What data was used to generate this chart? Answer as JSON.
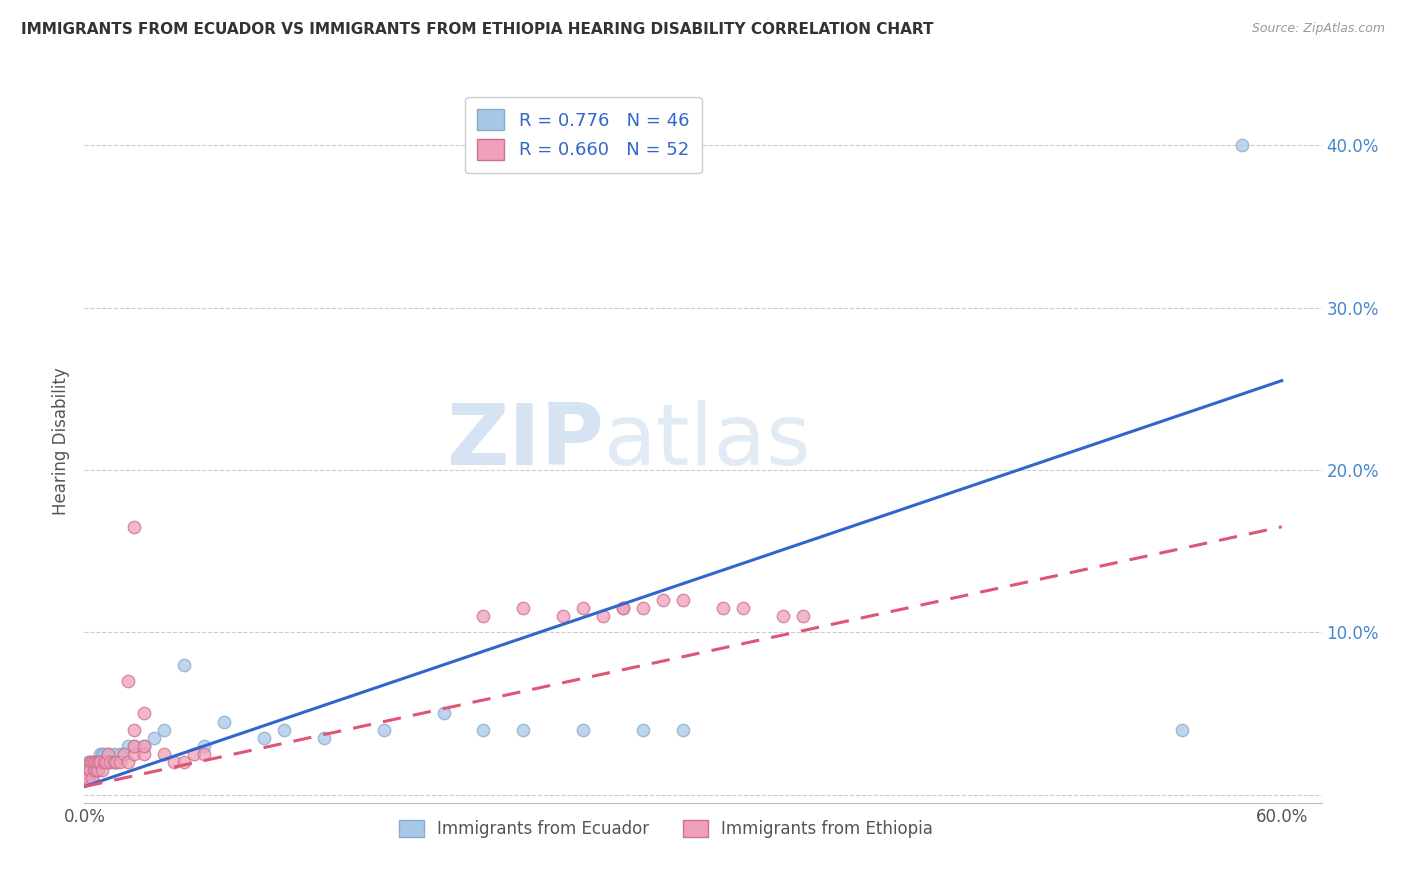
{
  "title": "IMMIGRANTS FROM ECUADOR VS IMMIGRANTS FROM ETHIOPIA HEARING DISABILITY CORRELATION CHART",
  "source": "Source: ZipAtlas.com",
  "ylabel": "Hearing Disability",
  "xlim": [
    0.0,
    0.62
  ],
  "ylim": [
    -0.005,
    0.44
  ],
  "ecuador_color": "#A8C8E8",
  "ethiopia_color": "#F0A0B8",
  "ecuador_edge": "#88AACC",
  "ethiopia_edge": "#D07090",
  "trend_ecuador_color": "#3366CC",
  "trend_ethiopia_color": "#E05575",
  "legend_R_ecuador": "R = 0.776",
  "legend_N_ecuador": "N = 46",
  "legend_R_ethiopia": "R = 0.660",
  "legend_N_ethiopia": "N = 52",
  "legend_label_ecuador": "Immigrants from Ecuador",
  "legend_label_ethiopia": "Immigrants from Ethiopia",
  "ecuador_x": [
    0.001,
    0.002,
    0.002,
    0.003,
    0.003,
    0.004,
    0.004,
    0.005,
    0.005,
    0.006,
    0.006,
    0.007,
    0.007,
    0.008,
    0.008,
    0.009,
    0.009,
    0.01,
    0.01,
    0.011,
    0.012,
    0.013,
    0.015,
    0.016,
    0.018,
    0.02,
    0.022,
    0.025,
    0.03,
    0.035,
    0.04,
    0.05,
    0.06,
    0.07,
    0.09,
    0.1,
    0.12,
    0.15,
    0.18,
    0.2,
    0.22,
    0.25,
    0.28,
    0.3,
    0.55,
    0.58
  ],
  "ecuador_y": [
    0.01,
    0.015,
    0.02,
    0.01,
    0.02,
    0.01,
    0.02,
    0.015,
    0.02,
    0.015,
    0.02,
    0.015,
    0.02,
    0.02,
    0.025,
    0.02,
    0.025,
    0.02,
    0.025,
    0.02,
    0.025,
    0.02,
    0.025,
    0.02,
    0.025,
    0.025,
    0.03,
    0.03,
    0.03,
    0.035,
    0.04,
    0.08,
    0.03,
    0.045,
    0.035,
    0.04,
    0.035,
    0.04,
    0.05,
    0.04,
    0.04,
    0.04,
    0.04,
    0.04,
    0.04,
    0.4
  ],
  "ethiopia_x": [
    0.001,
    0.002,
    0.002,
    0.003,
    0.003,
    0.004,
    0.004,
    0.005,
    0.005,
    0.006,
    0.006,
    0.007,
    0.007,
    0.008,
    0.008,
    0.009,
    0.01,
    0.011,
    0.012,
    0.013,
    0.015,
    0.016,
    0.018,
    0.02,
    0.022,
    0.025,
    0.03,
    0.04,
    0.045,
    0.05,
    0.055,
    0.06,
    0.022,
    0.025,
    0.03,
    0.025,
    0.03,
    0.025,
    0.2,
    0.25,
    0.27,
    0.28,
    0.3,
    0.32,
    0.35,
    0.22,
    0.24,
    0.26,
    0.27,
    0.29,
    0.33,
    0.36
  ],
  "ethiopia_y": [
    0.01,
    0.015,
    0.01,
    0.02,
    0.015,
    0.01,
    0.02,
    0.015,
    0.02,
    0.015,
    0.02,
    0.015,
    0.02,
    0.02,
    0.02,
    0.015,
    0.02,
    0.02,
    0.025,
    0.02,
    0.02,
    0.02,
    0.02,
    0.025,
    0.02,
    0.025,
    0.025,
    0.025,
    0.02,
    0.02,
    0.025,
    0.025,
    0.07,
    0.165,
    0.05,
    0.03,
    0.03,
    0.04,
    0.11,
    0.115,
    0.115,
    0.115,
    0.12,
    0.115,
    0.11,
    0.115,
    0.11,
    0.11,
    0.115,
    0.12,
    0.115,
    0.11
  ],
  "ecuador_trend_x": [
    0.0,
    0.6
  ],
  "ecuador_trend_y": [
    0.005,
    0.255
  ],
  "ethiopia_trend_x": [
    0.0,
    0.6
  ],
  "ethiopia_trend_y": [
    0.005,
    0.165
  ],
  "ytick_positions": [
    0.0,
    0.1,
    0.2,
    0.3,
    0.4
  ],
  "ytick_labels_right": [
    "",
    "10.0%",
    "20.0%",
    "30.0%",
    "40.0%"
  ],
  "xtick_positions": [
    0.0,
    0.1,
    0.2,
    0.3,
    0.4,
    0.5,
    0.6
  ],
  "xtick_labels": [
    "0.0%",
    "",
    "",
    "",
    "",
    "",
    "60.0%"
  ],
  "watermark_zip": "ZIP",
  "watermark_atlas": "atlas",
  "background_color": "#FFFFFF",
  "grid_color": "#CCCCCC",
  "tick_color": "#4488CC",
  "title_color": "#333333",
  "axis_label_color": "#555555"
}
